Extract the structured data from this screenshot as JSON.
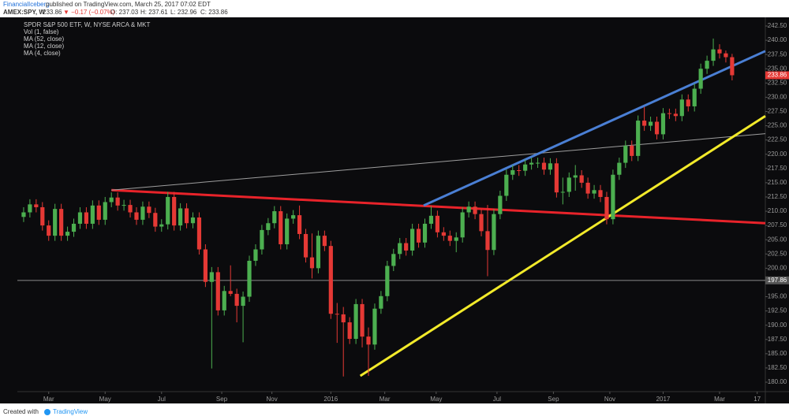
{
  "header": {
    "author": "FinancialIceberg",
    "published": "published on TradingView.com, March 25, 2017 07:02 EDT",
    "symbol": "AMEX:SPY, W",
    "price": "233.86",
    "change": "▼ −0.17 (−0.07%)",
    "ohlc": [
      "O: 237.03",
      "H: 237.61",
      "L: 232.96",
      "C: 233.86"
    ]
  },
  "footer": {
    "created": "Created with",
    "brand": "TradingView"
  },
  "chart_data": {
    "type": "candlestick",
    "legend": [
      "SPDR S&P 500 ETF, W, NYSE ARCA & MKT",
      "Vol (1, false)",
      "MA (52, close)",
      "MA (12, close)",
      "MA (4, close)"
    ],
    "up_color": "#4caf50",
    "down_color": "#e53935",
    "grid": false,
    "xlim": [
      -1,
      118.3
    ],
    "ylim": [
      180,
      242.5
    ],
    "xticks": [
      {
        "value": 4,
        "label": "Mar"
      },
      {
        "value": 13,
        "label": "May"
      },
      {
        "value": 22,
        "label": "Jul"
      },
      {
        "value": 31.6,
        "label": "Sep"
      },
      {
        "value": 39.6,
        "label": "Nov"
      },
      {
        "value": 49,
        "label": "2016"
      },
      {
        "value": 57.6,
        "label": "Mar"
      },
      {
        "value": 65.8,
        "label": "May"
      },
      {
        "value": 75.5,
        "label": "Jul"
      },
      {
        "value": 84.5,
        "label": "Sep"
      },
      {
        "value": 93.5,
        "label": "Nov"
      },
      {
        "value": 102,
        "label": "2017"
      },
      {
        "value": 111,
        "label": "Mar"
      },
      {
        "value": 117,
        "label": "17"
      }
    ],
    "yticks": [
      {
        "value": 242.5,
        "label": "242.50"
      },
      {
        "value": 240,
        "label": "240.00"
      },
      {
        "value": 237.5,
        "label": "237.50"
      },
      {
        "value": 235,
        "label": "235.00"
      },
      {
        "value": 232.5,
        "label": "232.50"
      },
      {
        "value": 230,
        "label": "230.00"
      },
      {
        "value": 227.5,
        "label": "227.50"
      },
      {
        "value": 225,
        "label": "225.00"
      },
      {
        "value": 222.5,
        "label": "222.50"
      },
      {
        "value": 220,
        "label": "220.00"
      },
      {
        "value": 217.5,
        "label": "217.50"
      },
      {
        "value": 215,
        "label": "215.00"
      },
      {
        "value": 212.5,
        "label": "212.50"
      },
      {
        "value": 210,
        "label": "210.00"
      },
      {
        "value": 207.5,
        "label": "207.50"
      },
      {
        "value": 205,
        "label": "205.00"
      },
      {
        "value": 202.5,
        "label": "202.50"
      },
      {
        "value": 200,
        "label": "200.00"
      },
      {
        "value": 195,
        "label": "195.00"
      },
      {
        "value": 192.5,
        "label": "192.50"
      },
      {
        "value": 190,
        "label": "190.00"
      },
      {
        "value": 187.5,
        "label": "187.50"
      },
      {
        "value": 185,
        "label": "185.00"
      },
      {
        "value": 182.5,
        "label": "182.50"
      },
      {
        "value": 180,
        "label": "180.00"
      }
    ],
    "last_price": 233.86,
    "hline": 197.86,
    "trend_lines": [
      {
        "from": [
          14,
          213.7
        ],
        "to": [
          118.3,
          207.9
        ],
        "color": "#e8232a",
        "width": 3
      },
      {
        "from": [
          14,
          213.7
        ],
        "to": [
          118.3,
          223.6
        ],
        "color": "#9e9e9e",
        "width": 1
      },
      {
        "from": [
          63.8,
          211.0
        ],
        "to": [
          118.3,
          238.1
        ],
        "color": "#4a7fd4",
        "width": 3
      },
      {
        "from": [
          53.7,
          181.1
        ],
        "to": [
          118.3,
          226.7
        ],
        "color": "#f2ea2a",
        "width": 3
      }
    ],
    "open": [
      209.0,
      209.8,
      211.2,
      210.7,
      207.5,
      205.7,
      210.4,
      205.7,
      206.4,
      207.8,
      209.8,
      207.8,
      211.0,
      208.5,
      211.6,
      212.4,
      211.0,
      211.1,
      209.8,
      208.5,
      210.8,
      209.7,
      207.3,
      207.7,
      212.5,
      207.5,
      210.5,
      207.9,
      208.9,
      203.3,
      197.6,
      199.3,
      192.6,
      196.0,
      195.5,
      193.4,
      195.0,
      201.3,
      203.3,
      206.7,
      207.9,
      210.0,
      204.2,
      208.7,
      209.3,
      206.0,
      201.9,
      200.0,
      205.7,
      203.9,
      192.0,
      191.9,
      190.5,
      187.6,
      193.7,
      188.0,
      186.6,
      192.9,
      195.1,
      200.4,
      202.5,
      204.4,
      203.1,
      206.9,
      204.5,
      207.8,
      209.2,
      206.3,
      205.7,
      204.8,
      205.4,
      209.8,
      210.8,
      209.5,
      206.5,
      203.2,
      209.5,
      212.7,
      216.4,
      217.2,
      217.1,
      218.2,
      218.5,
      218.5,
      217.3,
      218.4,
      213.3,
      213.4,
      215.9,
      216.3,
      215.0,
      213.1,
      213.7,
      212.5,
      208.6,
      216.4,
      218.5,
      221.5,
      219.7,
      225.9,
      225.0,
      225.7,
      223.5,
      227.2,
      227.1,
      226.7,
      229.6,
      228.4,
      231.5,
      235.0,
      236.4,
      238.4,
      237.7,
      237.03
    ],
    "high": [
      210.7,
      212.1,
      212.1,
      211.6,
      208.4,
      211.3,
      211.3,
      207.3,
      208.7,
      210.7,
      210.7,
      211.9,
      211.9,
      212.5,
      213.3,
      213.3,
      212.0,
      212.0,
      210.7,
      211.7,
      211.7,
      210.6,
      208.6,
      213.4,
      213.4,
      211.4,
      211.4,
      209.8,
      209.8,
      204.2,
      200.2,
      200.2,
      196.9,
      200.5,
      196.4,
      195.9,
      202.2,
      204.2,
      207.6,
      208.8,
      210.9,
      210.9,
      209.6,
      210.2,
      211.0,
      206.9,
      206.1,
      206.6,
      206.6,
      204.8,
      193.9,
      193.2,
      191.4,
      194.6,
      194.6,
      189.6,
      193.8,
      196.0,
      201.3,
      203.4,
      205.3,
      205.3,
      207.8,
      207.8,
      208.7,
      210.9,
      210.1,
      207.2,
      206.6,
      206.3,
      210.7,
      211.7,
      211.7,
      210.4,
      211.1,
      210.4,
      213.6,
      217.3,
      218.1,
      218.1,
      219.1,
      219.4,
      219.4,
      219.4,
      219.3,
      219.3,
      215.9,
      216.8,
      218.1,
      217.2,
      215.9,
      214.6,
      214.6,
      213.4,
      217.3,
      219.4,
      222.4,
      222.4,
      226.8,
      228.3,
      226.6,
      226.6,
      228.1,
      228.0,
      228.0,
      230.5,
      230.5,
      232.4,
      235.9,
      237.3,
      240.3,
      239.3,
      238.2,
      237.61
    ],
    "low": [
      208.1,
      208.9,
      209.8,
      206.6,
      204.8,
      204.8,
      204.8,
      204.8,
      205.5,
      206.9,
      206.9,
      206.9,
      207.6,
      207.6,
      210.7,
      210.1,
      210.1,
      208.9,
      207.6,
      207.6,
      208.8,
      206.4,
      206.4,
      206.8,
      206.6,
      206.6,
      207.0,
      207.0,
      202.4,
      196.7,
      182.4,
      191.7,
      191.7,
      195.1,
      190.5,
      187.0,
      194.1,
      200.4,
      202.4,
      205.8,
      207.0,
      203.3,
      203.3,
      207.8,
      205.1,
      201.0,
      198.2,
      199.1,
      203.0,
      191.1,
      186.9,
      181.0,
      186.7,
      186.7,
      186.1,
      181.1,
      185.7,
      192.0,
      194.2,
      199.5,
      201.6,
      202.2,
      202.2,
      203.6,
      203.6,
      206.9,
      205.4,
      204.8,
      203.9,
      202.8,
      204.5,
      208.9,
      208.6,
      205.6,
      198.6,
      202.3,
      208.6,
      211.8,
      215.5,
      216.2,
      216.2,
      217.3,
      217.6,
      216.4,
      216.4,
      212.4,
      211.2,
      212.5,
      213.6,
      214.1,
      212.2,
      212.2,
      211.6,
      207.7,
      207.7,
      215.5,
      217.6,
      218.8,
      218.8,
      224.1,
      224.1,
      222.6,
      222.6,
      226.2,
      225.8,
      225.8,
      227.5,
      227.5,
      230.6,
      234.1,
      235.5,
      236.8,
      236.1,
      232.96
    ],
    "close": [
      209.8,
      211.2,
      210.7,
      207.5,
      205.7,
      210.4,
      205.7,
      206.4,
      207.8,
      209.8,
      207.8,
      211.0,
      208.5,
      211.6,
      212.4,
      211.0,
      211.1,
      209.8,
      208.5,
      210.8,
      209.7,
      207.3,
      207.7,
      212.5,
      207.5,
      210.5,
      207.9,
      208.9,
      203.3,
      197.6,
      199.3,
      192.6,
      196.0,
      195.5,
      193.4,
      195.0,
      201.3,
      203.3,
      206.7,
      207.9,
      210.0,
      204.2,
      208.7,
      209.3,
      206.0,
      201.9,
      200.0,
      205.7,
      203.9,
      192.0,
      191.9,
      190.5,
      187.6,
      193.7,
      188.0,
      186.6,
      192.9,
      195.1,
      200.4,
      202.5,
      204.4,
      203.1,
      206.9,
      204.5,
      207.8,
      209.2,
      206.3,
      205.7,
      204.8,
      205.4,
      209.8,
      210.8,
      209.5,
      206.5,
      203.2,
      209.5,
      212.7,
      216.4,
      217.2,
      217.1,
      218.2,
      218.5,
      218.5,
      217.3,
      218.4,
      213.3,
      213.4,
      215.9,
      216.3,
      215.0,
      213.1,
      213.7,
      212.5,
      208.6,
      216.4,
      218.5,
      221.5,
      219.7,
      225.9,
      225.0,
      225.7,
      223.5,
      227.2,
      227.1,
      226.7,
      229.6,
      228.4,
      231.5,
      235.0,
      236.4,
      238.4,
      237.7,
      237.03,
      233.86
    ]
  }
}
